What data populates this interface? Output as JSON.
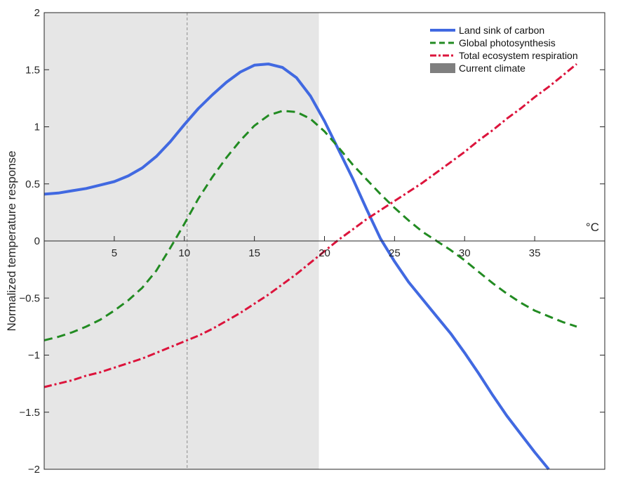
{
  "chart_data": {
    "type": "line",
    "title": "",
    "xlabel": "",
    "x_unit_label": "°C",
    "ylabel": "Normalized temperature response",
    "xlim": [
      0,
      40
    ],
    "ylim": [
      -2,
      2
    ],
    "x_ticks": [
      5,
      10,
      15,
      20,
      25,
      30,
      35
    ],
    "y_ticks": [
      -2,
      -1.5,
      -1,
      -0.5,
      0,
      0.5,
      1,
      1.5,
      2
    ],
    "y_tick_labels": [
      "−2",
      "−1.5",
      "−1",
      "−0.5",
      "0",
      "0.5",
      "1",
      "1.5",
      "2"
    ],
    "grid": false,
    "legend_position": "top-right",
    "shaded_region": {
      "name": "Current climate",
      "x_range": [
        0,
        19.6
      ],
      "color": "#e6e6e6"
    },
    "reference_line_x": 10.2,
    "series": [
      {
        "name": "Land sink of carbon",
        "color": "#4169e1",
        "style": "solid",
        "x": [
          0,
          1,
          2,
          3,
          4,
          5,
          6,
          7,
          8,
          9,
          10,
          11,
          12,
          13,
          14,
          15,
          16,
          17,
          18,
          19,
          20,
          21,
          22,
          23,
          24,
          25,
          26,
          27,
          28,
          29,
          30,
          31,
          32,
          33,
          34,
          35,
          36
        ],
        "y": [
          0.41,
          0.42,
          0.44,
          0.46,
          0.49,
          0.52,
          0.57,
          0.64,
          0.74,
          0.87,
          1.02,
          1.16,
          1.28,
          1.39,
          1.48,
          1.54,
          1.55,
          1.52,
          1.43,
          1.27,
          1.05,
          0.8,
          0.55,
          0.28,
          0.02,
          -0.18,
          -0.36,
          -0.51,
          -0.66,
          -0.81,
          -0.98,
          -1.16,
          -1.35,
          -1.53,
          -1.69,
          -1.85,
          -2.0
        ]
      },
      {
        "name": "Global photosynthesis",
        "color": "#228b22",
        "style": "dashed",
        "x": [
          0,
          1,
          2,
          3,
          4,
          5,
          6,
          7,
          8,
          9,
          10,
          11,
          12,
          13,
          14,
          15,
          16,
          17,
          18,
          19,
          20,
          21,
          22,
          23,
          24,
          25,
          26,
          27,
          28,
          29,
          30,
          31,
          32,
          33,
          34,
          35,
          36,
          37,
          38
        ],
        "y": [
          -0.87,
          -0.84,
          -0.8,
          -0.75,
          -0.69,
          -0.61,
          -0.52,
          -0.41,
          -0.26,
          -0.06,
          0.15,
          0.37,
          0.56,
          0.73,
          0.88,
          1.01,
          1.1,
          1.14,
          1.13,
          1.07,
          0.96,
          0.82,
          0.67,
          0.54,
          0.41,
          0.29,
          0.18,
          0.08,
          0.0,
          -0.08,
          -0.17,
          -0.27,
          -0.37,
          -0.46,
          -0.54,
          -0.61,
          -0.66,
          -0.71,
          -0.75
        ]
      },
      {
        "name": "Total ecosystem respiration",
        "color": "#dc143c",
        "style": "dashdot",
        "x": [
          0,
          1,
          2,
          3,
          4,
          5,
          6,
          7,
          8,
          9,
          10,
          11,
          12,
          13,
          14,
          15,
          16,
          17,
          18,
          19,
          20,
          21,
          22,
          23,
          24,
          25,
          26,
          27,
          28,
          29,
          30,
          31,
          32,
          33,
          34,
          35,
          36,
          37,
          38
        ],
        "y": [
          -1.28,
          -1.25,
          -1.22,
          -1.18,
          -1.15,
          -1.11,
          -1.07,
          -1.03,
          -0.98,
          -0.93,
          -0.88,
          -0.83,
          -0.77,
          -0.7,
          -0.63,
          -0.55,
          -0.47,
          -0.38,
          -0.29,
          -0.19,
          -0.09,
          0.01,
          0.1,
          0.19,
          0.27,
          0.35,
          0.43,
          0.51,
          0.6,
          0.69,
          0.78,
          0.88,
          0.97,
          1.07,
          1.16,
          1.26,
          1.35,
          1.45,
          1.55
        ]
      }
    ]
  }
}
